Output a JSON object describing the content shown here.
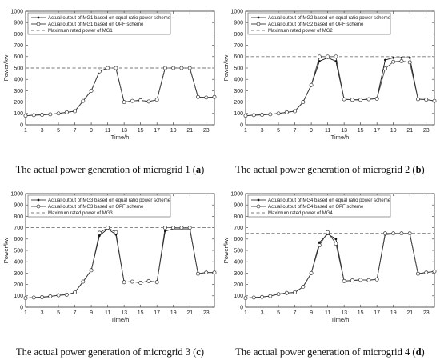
{
  "chart_data": [
    {
      "type": "line",
      "caption_text": "The actual power generation of microgrid 1 (",
      "caption_letter": "a",
      "caption_close": ")",
      "xlabel": "Time/h",
      "ylabel": "Power/kw",
      "xlim": [
        1,
        24
      ],
      "ylim": [
        0,
        1000
      ],
      "xticks": [
        1,
        3,
        5,
        7,
        9,
        11,
        13,
        15,
        17,
        19,
        21,
        23
      ],
      "yticks": [
        0,
        100,
        200,
        300,
        400,
        500,
        600,
        700,
        800,
        900,
        1000
      ],
      "grid": false,
      "legend_position": "top-left",
      "x": [
        1,
        2,
        3,
        4,
        5,
        6,
        7,
        8,
        9,
        10,
        11,
        12,
        13,
        14,
        15,
        16,
        17,
        18,
        19,
        20,
        21,
        22,
        23,
        24
      ],
      "series": [
        {
          "name": "Actual output of MG1 based on equal ratio power scheme",
          "marker": "filled-dot",
          "values": [
            80,
            85,
            88,
            92,
            100,
            110,
            120,
            210,
            300,
            470,
            500,
            500,
            200,
            210,
            215,
            205,
            220,
            500,
            500,
            500,
            500,
            245,
            240,
            245
          ]
        },
        {
          "name": "Actual output of MG1 based on OPF scheme",
          "marker": "open-circle",
          "values": [
            80,
            85,
            88,
            92,
            100,
            110,
            120,
            210,
            300,
            470,
            500,
            500,
            200,
            210,
            215,
            205,
            220,
            500,
            500,
            500,
            500,
            245,
            240,
            245
          ]
        },
        {
          "name": "Maximum rated power of MG1",
          "style": "dashed",
          "constant": 500
        }
      ]
    },
    {
      "type": "line",
      "caption_text": "The actual power generation of microgrid 2 (",
      "caption_letter": "b",
      "caption_close": ")",
      "xlabel": "Time/h",
      "ylabel": "Power/kw",
      "xlim": [
        1,
        24
      ],
      "ylim": [
        0,
        1000
      ],
      "xticks": [
        1,
        3,
        5,
        7,
        9,
        11,
        13,
        15,
        17,
        19,
        21,
        23
      ],
      "yticks": [
        0,
        100,
        200,
        300,
        400,
        500,
        600,
        700,
        800,
        900,
        1000
      ],
      "grid": false,
      "legend_position": "top-left",
      "x": [
        1,
        2,
        3,
        4,
        5,
        6,
        7,
        8,
        9,
        10,
        11,
        12,
        13,
        14,
        15,
        16,
        17,
        18,
        19,
        20,
        21,
        22,
        23,
        24
      ],
      "series": [
        {
          "name": "Actual output of MG2 based on equal ratio power scheme",
          "marker": "filled-dot",
          "values": [
            80,
            85,
            88,
            92,
            100,
            110,
            120,
            200,
            350,
            560,
            590,
            560,
            225,
            220,
            220,
            225,
            230,
            570,
            590,
            590,
            590,
            225,
            222,
            210
          ]
        },
        {
          "name": "Actual output of MG2 based on OPF scheme",
          "marker": "open-circle",
          "values": [
            80,
            85,
            88,
            92,
            100,
            110,
            120,
            200,
            350,
            600,
            600,
            600,
            225,
            220,
            220,
            225,
            230,
            495,
            555,
            560,
            550,
            225,
            222,
            210
          ]
        },
        {
          "name": "Maximum rated power of MG2",
          "style": "dashed",
          "constant": 600
        }
      ]
    },
    {
      "type": "line",
      "caption_text": "The actual power generation of microgrid 3 (",
      "caption_letter": "c",
      "caption_close": ")",
      "xlabel": "Time/h",
      "ylabel": "Power/kw",
      "xlim": [
        1,
        24
      ],
      "ylim": [
        0,
        1000
      ],
      "xticks": [
        1,
        3,
        5,
        7,
        9,
        11,
        13,
        15,
        17,
        19,
        21,
        23
      ],
      "yticks": [
        0,
        100,
        200,
        300,
        400,
        500,
        600,
        700,
        800,
        900,
        1000
      ],
      "grid": false,
      "legend_position": "top-left",
      "x": [
        1,
        2,
        3,
        4,
        5,
        6,
        7,
        8,
        9,
        10,
        11,
        12,
        13,
        14,
        15,
        16,
        17,
        18,
        19,
        20,
        21,
        22,
        23,
        24
      ],
      "series": [
        {
          "name": "Actual output of MG3 based on equal ratio power scheme",
          "marker": "filled-dot",
          "values": [
            80,
            85,
            88,
            95,
            105,
            110,
            130,
            225,
            325,
            630,
            690,
            640,
            220,
            225,
            215,
            230,
            220,
            670,
            690,
            690,
            690,
            295,
            305,
            305
          ]
        },
        {
          "name": "Actual output of MG3 based on OPF scheme",
          "marker": "open-circle",
          "values": [
            80,
            85,
            88,
            95,
            105,
            110,
            130,
            225,
            325,
            655,
            700,
            660,
            220,
            225,
            215,
            230,
            220,
            700,
            700,
            700,
            700,
            295,
            305,
            305
          ]
        },
        {
          "name": "Maximum rated power of MG3",
          "style": "dashed",
          "constant": 700
        }
      ]
    },
    {
      "type": "line",
      "caption_text": "The actual power generation of microgrid 4 (",
      "caption_letter": "d",
      "caption_close": ")",
      "xlabel": "Time/h",
      "ylabel": "Power/kw",
      "xlim": [
        1,
        24
      ],
      "ylim": [
        0,
        1000
      ],
      "xticks": [
        1,
        3,
        5,
        7,
        9,
        11,
        13,
        15,
        17,
        19,
        21,
        23
      ],
      "yticks": [
        0,
        100,
        200,
        300,
        400,
        500,
        600,
        700,
        800,
        900,
        1000
      ],
      "grid": false,
      "legend_position": "top-left",
      "x": [
        1,
        2,
        3,
        4,
        5,
        6,
        7,
        8,
        9,
        10,
        11,
        12,
        13,
        14,
        15,
        16,
        17,
        18,
        19,
        20,
        21,
        22,
        23,
        24
      ],
      "series": [
        {
          "name": "Actual output of MG4 based on equal ratio power scheme",
          "marker": "filled-dot",
          "values": [
            80,
            85,
            90,
            98,
            115,
            125,
            130,
            180,
            300,
            570,
            645,
            600,
            230,
            235,
            240,
            238,
            245,
            640,
            645,
            645,
            645,
            295,
            305,
            315
          ]
        },
        {
          "name": "Actual output of MG4 based on OPF scheme",
          "marker": "open-circle",
          "values": [
            80,
            85,
            90,
            98,
            115,
            125,
            130,
            180,
            300,
            545,
            660,
            560,
            230,
            235,
            240,
            238,
            245,
            650,
            650,
            650,
            650,
            295,
            305,
            315
          ]
        },
        {
          "name": "Maximum rated power of MG4",
          "style": "dashed",
          "constant": 650
        }
      ]
    }
  ]
}
